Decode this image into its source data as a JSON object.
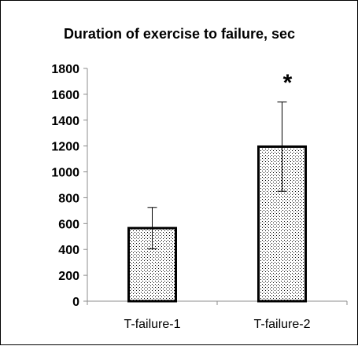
{
  "chart_data": {
    "type": "bar",
    "title": "Duration of exercise to failure, sec",
    "xlabel": "",
    "ylabel": "",
    "categories": [
      "T-failure-1",
      "T-failure-2"
    ],
    "values": [
      565,
      1195
    ],
    "error_upper": [
      725,
      1540
    ],
    "error_lower": [
      405,
      850
    ],
    "ylim": [
      0,
      1800
    ],
    "yticks": [
      0,
      200,
      400,
      600,
      800,
      1000,
      1200,
      1400,
      1600,
      1800
    ],
    "annotations": [
      {
        "category": "T-failure-2",
        "text": "*"
      }
    ],
    "grid": false,
    "legend": "none",
    "bar_fill": "stippled light gray",
    "bar_edge_color": "#000000"
  }
}
